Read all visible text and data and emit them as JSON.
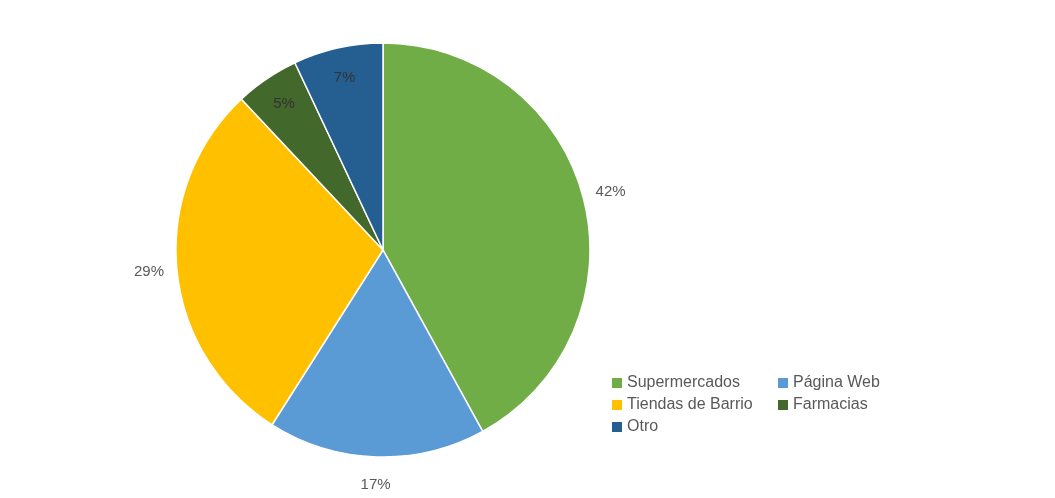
{
  "chart_data": {
    "type": "pie",
    "categories": [
      "Supermercados",
      "Página Web",
      "Tiendas de Barrio",
      "Farmacias",
      "Otro"
    ],
    "values": [
      42,
      17,
      29,
      5,
      7
    ],
    "colors": [
      "#70ad47",
      "#5b9bd5",
      "#ffc000",
      "#43682b",
      "#255e91"
    ],
    "value_labels": [
      "42%",
      "17%",
      "29%",
      "5%",
      "7%"
    ],
    "legend": "bottom right"
  }
}
